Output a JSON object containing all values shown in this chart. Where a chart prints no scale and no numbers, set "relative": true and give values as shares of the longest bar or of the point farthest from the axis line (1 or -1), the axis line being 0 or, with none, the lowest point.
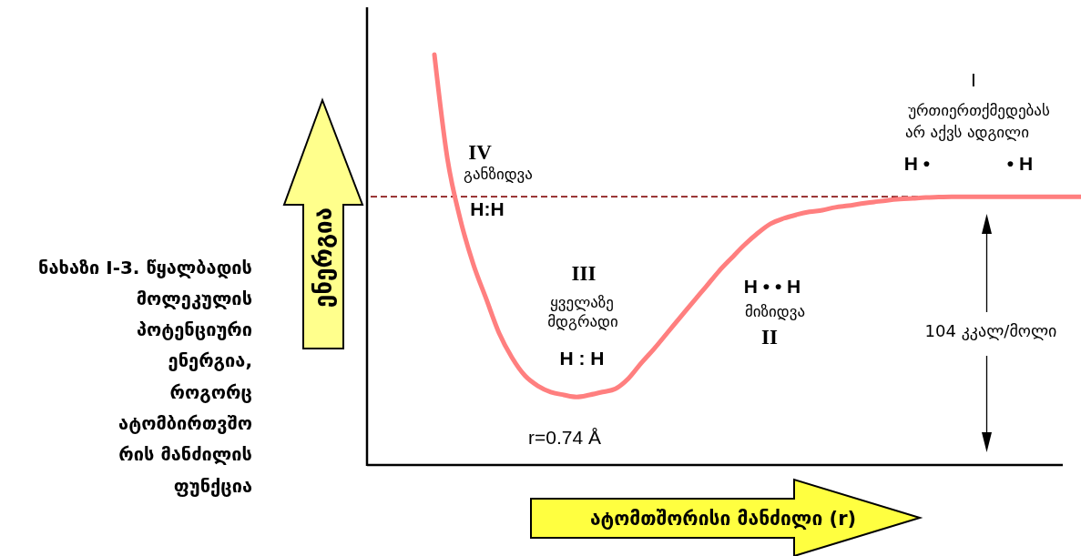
{
  "chart_data": {
    "type": "line",
    "relative": true,
    "title": "ნახაზი I-3. წყალბადის\nმოლეკულის\nპოტენციური\nენერგია,\nროგორც\nატომბირთვშო\nრის მანძილის\nფუნქცია",
    "xlabel": "ატომთშორისი მანძილი (r)",
    "ylabel": "ენერგია",
    "categories": [
      null,
      null,
      null,
      null,
      null,
      null,
      null,
      null,
      null,
      null,
      null,
      null,
      null,
      null,
      null,
      null,
      null,
      null,
      null,
      null,
      null,
      null,
      null,
      null,
      null,
      null,
      null,
      null,
      null,
      null,
      null,
      null,
      null,
      null,
      null,
      null,
      null,
      null,
      null,
      null,
      null,
      null,
      null,
      null,
      null,
      null,
      null,
      null,
      null,
      null,
      null
    ],
    "series": [
      {
        "color": "#ff7f7f",
        "values": [
          1,
          0.747,
          0.598,
          0.489,
          0.404,
          0.32,
          0.26,
          0.216,
          0.191,
          0.176,
          0.169,
          0.164,
          0.169,
          0.176,
          0.184,
          0.209,
          0.247,
          0.282,
          0.32,
          0.358,
          0.396,
          0.433,
          0.471,
          0.504,
          0.536,
          0.564,
          0.587,
          0.6,
          0.609,
          0.616,
          0.62,
          0.627,
          0.631,
          0.636,
          0.64,
          0.644,
          0.647,
          0.649,
          0.651,
          0.652,
          0.653,
          0.653,
          0.653,
          0.653,
          0.653,
          0.653,
          0.653,
          0.653,
          0.653,
          0.653,
          0.653
        ]
      }
    ],
    "ref_lines": [
      {
        "axis": "y",
        "value": 0.653,
        "color": "#8b1a1a",
        "line_style": "dashed"
      }
    ],
    "annotations": [
      "IV",
      "განზიდვა",
      "H:H",
      "III",
      "ყველაზე",
      "მდგრადი",
      "H : H",
      "r=0.74 Å",
      "H • • H",
      "მიზიდვა",
      "II",
      "I",
      "ურთიერთქმედებას",
      "არ აქვს ადგილი",
      "H •",
      "• H",
      "104 კკალ/მოლი"
    ]
  }
}
